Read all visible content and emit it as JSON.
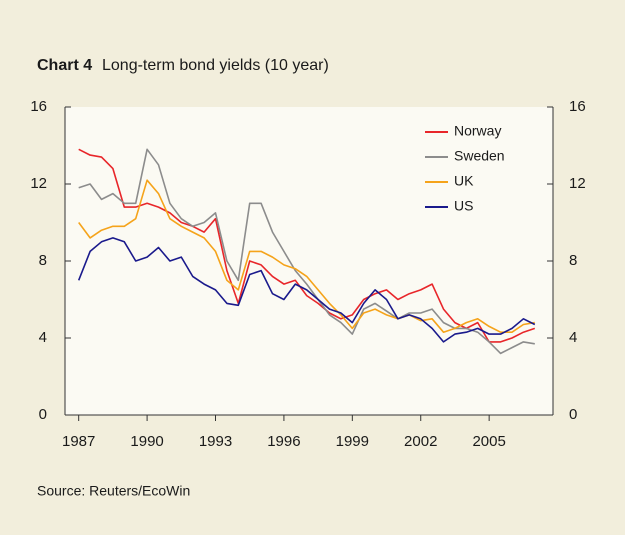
{
  "chart_data": {
    "type": "line",
    "chart_label": "Chart 4",
    "title": "Long-term bond yields (10 year)",
    "source": "Source: Reuters/EcoWin",
    "x": [
      1987,
      1987.5,
      1988,
      1988.5,
      1989,
      1989.5,
      1990,
      1990.5,
      1991,
      1991.5,
      1992,
      1992.5,
      1993,
      1993.5,
      1994,
      1994.5,
      1995,
      1995.5,
      1996,
      1996.5,
      1997,
      1997.5,
      1998,
      1998.5,
      1999,
      1999.5,
      2000,
      2000.5,
      2001,
      2001.5,
      2002,
      2002.5,
      2003,
      2003.5,
      2004,
      2004.5,
      2005,
      2005.5,
      2006,
      2006.5,
      2007
    ],
    "series": [
      {
        "name": "Norway",
        "color": "#e8262a",
        "values": [
          13.8,
          13.5,
          13.4,
          12.8,
          10.8,
          10.8,
          11.0,
          10.8,
          10.5,
          10.0,
          9.8,
          9.5,
          10.2,
          7.5,
          5.8,
          8.0,
          7.8,
          7.2,
          6.8,
          7.0,
          6.2,
          5.8,
          5.3,
          5.0,
          5.2,
          6.0,
          6.3,
          6.5,
          6.0,
          6.3,
          6.5,
          6.8,
          5.5,
          4.8,
          4.5,
          4.8,
          3.8,
          3.8,
          4.0,
          4.3,
          4.5
        ]
      },
      {
        "name": "Sweden",
        "color": "#8c8c8c",
        "values": [
          11.8,
          12.0,
          11.2,
          11.5,
          11.0,
          11.0,
          13.8,
          13.0,
          11.0,
          10.2,
          9.8,
          10.0,
          10.5,
          8.0,
          7.0,
          11.0,
          11.0,
          9.5,
          8.5,
          7.5,
          6.8,
          6.0,
          5.2,
          4.8,
          4.2,
          5.5,
          5.8,
          5.4,
          5.0,
          5.3,
          5.3,
          5.5,
          4.8,
          4.5,
          4.5,
          4.3,
          3.8,
          3.2,
          3.5,
          3.8,
          3.7
        ]
      },
      {
        "name": "UK",
        "color": "#f5a31a",
        "values": [
          10.0,
          9.2,
          9.6,
          9.8,
          9.8,
          10.2,
          12.2,
          11.5,
          10.2,
          9.8,
          9.5,
          9.2,
          8.5,
          7.0,
          6.5,
          8.5,
          8.5,
          8.2,
          7.8,
          7.6,
          7.2,
          6.5,
          5.8,
          5.2,
          4.5,
          5.3,
          5.5,
          5.2,
          5.0,
          5.2,
          4.9,
          5.0,
          4.3,
          4.5,
          4.8,
          5.0,
          4.6,
          4.3,
          4.3,
          4.7,
          4.8
        ]
      },
      {
        "name": "US",
        "color": "#1a1a8c",
        "values": [
          7.0,
          8.5,
          9.0,
          9.2,
          9.0,
          8.0,
          8.2,
          8.7,
          8.0,
          8.2,
          7.2,
          6.8,
          6.5,
          5.8,
          5.7,
          7.3,
          7.5,
          6.3,
          6.0,
          6.8,
          6.5,
          6.0,
          5.5,
          5.3,
          4.8,
          5.8,
          6.5,
          6.0,
          5.0,
          5.2,
          5.0,
          4.5,
          3.8,
          4.2,
          4.3,
          4.5,
          4.2,
          4.2,
          4.5,
          5.0,
          4.7
        ]
      }
    ],
    "xlim": [
      1986.4,
      2007.8
    ],
    "xticks": [
      1987,
      1990,
      1993,
      1996,
      1999,
      2002,
      2005
    ],
    "ylim": [
      0,
      16
    ],
    "yticks": [
      0,
      4,
      8,
      12,
      16
    ],
    "y2lim": [
      0,
      16
    ],
    "y2ticks": [
      0,
      4,
      8,
      12,
      16
    ],
    "legend": "upper right"
  }
}
